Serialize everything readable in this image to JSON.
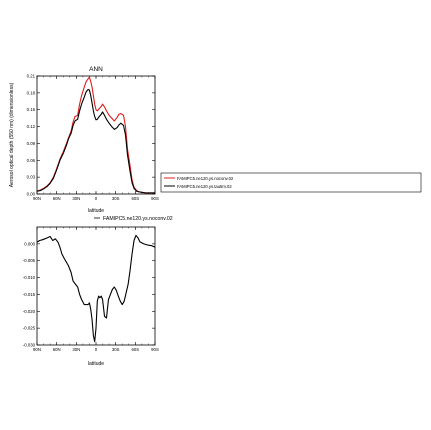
{
  "chart_data": [
    {
      "type": "line",
      "title": "ANN",
      "xlabel": "latitude",
      "ylabel": "Aerosol  optical  depth  (550  nm)  (dimensionless)",
      "xlim": [
        90,
        -90
      ],
      "ylim": [
        0,
        0.21
      ],
      "x_ticks": [
        90,
        60,
        30,
        0,
        -30,
        -60,
        -90
      ],
      "x_tick_labels": [
        "90N",
        "60N",
        "30N",
        "0",
        "30S",
        "60S",
        "90S"
      ],
      "y_ticks": [
        0,
        0.03,
        0.06,
        0.09,
        0.12,
        0.15,
        0.18,
        0.21
      ],
      "y_tick_labels": [
        "0.00",
        "0.03",
        "0.06",
        "0.09",
        "0.12",
        "0.15",
        "0.18",
        "0.21"
      ],
      "legend_position": "right, outside plot",
      "series": [
        {
          "name": "FAMIPC5.ne120.ys.noconv.02",
          "color": "#dd1c1c",
          "x": [
            90,
            85,
            80,
            75,
            70,
            65,
            60,
            55,
            50,
            45,
            42,
            38,
            35,
            32,
            28,
            25,
            22,
            18,
            15,
            12,
            10,
            8,
            6,
            4,
            2,
            0,
            -2,
            -5,
            -8,
            -10,
            -13,
            -16,
            -20,
            -24,
            -28,
            -32,
            -35,
            -38,
            -42,
            -45,
            -48,
            -52,
            -55,
            -58,
            -62,
            -65,
            -70,
            -75,
            -80,
            -85,
            -90
          ],
          "y": [
            0.005,
            0.007,
            0.01,
            0.014,
            0.02,
            0.03,
            0.045,
            0.062,
            0.075,
            0.09,
            0.1,
            0.112,
            0.128,
            0.138,
            0.14,
            0.16,
            0.175,
            0.19,
            0.2,
            0.205,
            0.208,
            0.2,
            0.19,
            0.175,
            0.16,
            0.15,
            0.148,
            0.152,
            0.156,
            0.16,
            0.155,
            0.148,
            0.14,
            0.135,
            0.13,
            0.136,
            0.142,
            0.143,
            0.14,
            0.12,
            0.08,
            0.05,
            0.025,
            0.012,
            0.006,
            0.004,
            0.003,
            0.002,
            0.002,
            0.002,
            0.002
          ]
        },
        {
          "name": "FAMIPC5.ne120.ys.tau5m.02",
          "color": "#000000",
          "x": [
            90,
            85,
            80,
            75,
            70,
            65,
            60,
            55,
            50,
            45,
            42,
            38,
            35,
            32,
            28,
            25,
            22,
            18,
            15,
            12,
            10,
            8,
            6,
            4,
            2,
            0,
            -2,
            -5,
            -8,
            -10,
            -13,
            -16,
            -20,
            -24,
            -28,
            -32,
            -35,
            -38,
            -42,
            -45,
            -48,
            -52,
            -55,
            -58,
            -62,
            -65,
            -70,
            -75,
            -80,
            -85,
            -90
          ],
          "y": [
            0.005,
            0.006,
            0.009,
            0.013,
            0.019,
            0.028,
            0.043,
            0.06,
            0.072,
            0.087,
            0.098,
            0.108,
            0.122,
            0.13,
            0.133,
            0.148,
            0.16,
            0.172,
            0.182,
            0.186,
            0.185,
            0.175,
            0.162,
            0.148,
            0.138,
            0.132,
            0.133,
            0.138,
            0.142,
            0.146,
            0.14,
            0.133,
            0.126,
            0.12,
            0.115,
            0.118,
            0.123,
            0.126,
            0.122,
            0.105,
            0.07,
            0.04,
            0.02,
            0.01,
            0.005,
            0.004,
            0.003,
            0.002,
            0.002,
            0.002,
            0.002
          ]
        }
      ]
    },
    {
      "type": "line",
      "title": "",
      "xlabel": "latitude",
      "xlim": [
        90,
        -90
      ],
      "ylim": [
        -0.03,
        0.005
      ],
      "x_ticks": [
        90,
        60,
        30,
        0,
        -30,
        -60,
        -90
      ],
      "x_tick_labels": [
        "90N",
        "60N",
        "30N",
        "0",
        "30S",
        "60S",
        "90S"
      ],
      "y_ticks": [
        0,
        -0.005,
        -0.01,
        -0.015,
        -0.02,
        -0.025,
        -0.03
      ],
      "y_tick_labels": [
        "0.000",
        "-0.005",
        "-0.010",
        "-0.015",
        "-0.020",
        "-0.025",
        "-0.030"
      ],
      "legend_position": "top-right, outside plot",
      "series": [
        {
          "name": "FAMIPC5.ne120.ys.noconv.02",
          "color": "#000000",
          "x": [
            90,
            86,
            82,
            78,
            74,
            70,
            66,
            62,
            58,
            55,
            52,
            48,
            45,
            42,
            38,
            35,
            32,
            28,
            25,
            22,
            18,
            15,
            12,
            10,
            8,
            6,
            4,
            2,
            0,
            -2,
            -4,
            -6,
            -8,
            -10,
            -13,
            -16,
            -19,
            -22,
            -25,
            -28,
            -31,
            -34,
            -37,
            -40,
            -43,
            -46,
            -49,
            -52,
            -55,
            -58,
            -61,
            -64,
            -67,
            -70,
            -73,
            -76,
            -80,
            -84,
            -88,
            -90
          ],
          "y": [
            0.0005,
            0.001,
            0.0012,
            0.0015,
            0.0018,
            0.0022,
            0.001,
            0.0015,
            0.0005,
            -0.001,
            -0.003,
            -0.0045,
            -0.0055,
            -0.0065,
            -0.0085,
            -0.011,
            -0.0118,
            -0.0128,
            -0.015,
            -0.0165,
            -0.018,
            -0.018,
            -0.018,
            -0.0175,
            -0.0195,
            -0.0225,
            -0.0272,
            -0.029,
            -0.025,
            -0.017,
            -0.0155,
            -0.016,
            -0.0155,
            -0.0165,
            -0.0215,
            -0.022,
            -0.0165,
            -0.015,
            -0.0135,
            -0.0128,
            -0.0138,
            -0.0155,
            -0.017,
            -0.018,
            -0.017,
            -0.0145,
            -0.012,
            -0.0078,
            -0.003,
            0.001,
            0.0025,
            0.0018,
            0.0006,
            0.0003,
            0.0,
            -0.0002,
            -0.0004,
            -0.0005,
            -0.0008,
            -0.001
          ]
        }
      ]
    }
  ]
}
